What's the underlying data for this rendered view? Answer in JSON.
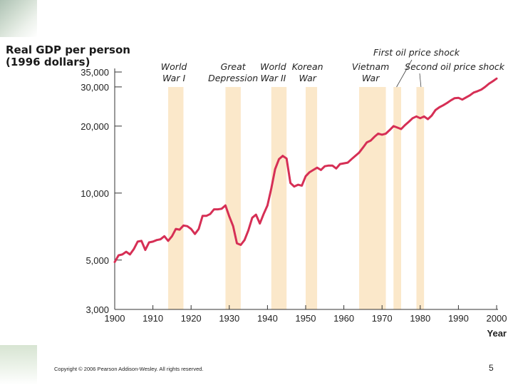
{
  "chart_data": {
    "type": "line",
    "ylabel": "Real GDP per person\n(1996 dollars)",
    "xlabel": "Year",
    "scale": "log",
    "xlim": [
      1900,
      2000
    ],
    "ylim": [
      3000,
      35000
    ],
    "x_ticks": [
      {
        "value": 1900,
        "label": "1900"
      },
      {
        "value": 1910,
        "label": "1910"
      },
      {
        "value": 1920,
        "label": "1920"
      },
      {
        "value": 1930,
        "label": "1930"
      },
      {
        "value": 1940,
        "label": "1940"
      },
      {
        "value": 1950,
        "label": "1950"
      },
      {
        "value": 1960,
        "label": "1960"
      },
      {
        "value": 1970,
        "label": "1970"
      },
      {
        "value": 1980,
        "label": "1980"
      },
      {
        "value": 1990,
        "label": "1990"
      },
      {
        "value": 2000,
        "label": "2000"
      }
    ],
    "y_ticks": [
      {
        "value": 3000,
        "label": "3,000"
      },
      {
        "value": 5000,
        "label": "5,000"
      },
      {
        "value": 10000,
        "label": "10,000"
      },
      {
        "value": 20000,
        "label": "20,000"
      },
      {
        "value": 30000,
        "label": "30,000"
      },
      {
        "value": 35000,
        "label": "35,000"
      }
    ],
    "bands": [
      {
        "name": "world-war-1",
        "start": 1914,
        "end": 1918,
        "label": [
          "World",
          "War I"
        ],
        "label_x": 1915.5
      },
      {
        "name": "great-depression",
        "start": 1929,
        "end": 1933,
        "label": [
          "Great",
          "Depression"
        ],
        "label_x": 1931
      },
      {
        "name": "world-war-2",
        "start": 1941,
        "end": 1945,
        "label": [
          "World",
          "War II"
        ],
        "label_x": 1941.5
      },
      {
        "name": "korean-war",
        "start": 1950,
        "end": 1953,
        "label": [
          "Korean",
          "War"
        ],
        "label_x": 1950.5
      },
      {
        "name": "vietnam-war",
        "start": 1964,
        "end": 1971,
        "label": [
          "Vietnam",
          "War"
        ],
        "label_x": 1967
      },
      {
        "name": "first-oil-price-shock",
        "start": 1973,
        "end": 1975,
        "label": [],
        "label_x": 1973.5
      },
      {
        "name": "second-oil-price-shock",
        "start": 1979,
        "end": 1981,
        "label": [],
        "label_x": 1980
      }
    ],
    "callouts": [
      {
        "name": "first-oil-price-shock-label",
        "text": "First oil price shock",
        "band": "first-oil-price-shock"
      },
      {
        "name": "second-oil-price-shock-label",
        "text": "Second oil price shock",
        "band": "second-oil-price-shock"
      }
    ],
    "series": [
      {
        "name": "Real GDP per person",
        "color": "#d62f55",
        "x": [
          1900,
          1901,
          1902,
          1903,
          1904,
          1905,
          1906,
          1907,
          1908,
          1909,
          1910,
          1911,
          1912,
          1913,
          1914,
          1915,
          1916,
          1917,
          1918,
          1919,
          1920,
          1921,
          1922,
          1923,
          1924,
          1925,
          1926,
          1927,
          1928,
          1929,
          1930,
          1931,
          1932,
          1933,
          1934,
          1935,
          1936,
          1937,
          1938,
          1939,
          1940,
          1941,
          1942,
          1943,
          1944,
          1945,
          1946,
          1947,
          1948,
          1949,
          1950,
          1951,
          1952,
          1953,
          1954,
          1955,
          1956,
          1957,
          1958,
          1959,
          1960,
          1961,
          1962,
          1963,
          1964,
          1965,
          1966,
          1967,
          1968,
          1969,
          1970,
          1971,
          1972,
          1973,
          1974,
          1975,
          1976,
          1977,
          1978,
          1979,
          1980,
          1981,
          1982,
          1983,
          1984,
          1985,
          1986,
          1987,
          1988,
          1989,
          1990,
          1991,
          1992,
          1993,
          1994,
          1995,
          1996,
          1997,
          1998,
          1999,
          2000
        ],
        "values": [
          4900,
          5250,
          5300,
          5450,
          5300,
          5600,
          6050,
          6100,
          5550,
          6000,
          6050,
          6150,
          6200,
          6400,
          6100,
          6400,
          6900,
          6850,
          7150,
          7100,
          6900,
          6550,
          6900,
          7900,
          7900,
          8050,
          8450,
          8450,
          8500,
          8800,
          7850,
          7100,
          5950,
          5850,
          6150,
          6800,
          7750,
          8000,
          7300,
          8050,
          8800,
          10500,
          12800,
          14200,
          14700,
          14300,
          11100,
          10700,
          10900,
          10800,
          11900,
          12400,
          12700,
          13000,
          12700,
          13200,
          13300,
          13300,
          12900,
          13500,
          13600,
          13700,
          14200,
          14700,
          15200,
          16000,
          16900,
          17200,
          17900,
          18500,
          18300,
          18500,
          19200,
          20000,
          19700,
          19400,
          20200,
          20900,
          21700,
          22100,
          21700,
          22100,
          21500,
          22300,
          23600,
          24300,
          24800,
          25400,
          26100,
          26700,
          26800,
          26300,
          26900,
          27500,
          28300,
          28700,
          29200,
          30000,
          31000,
          31800,
          32700
        ]
      }
    ]
  },
  "footer": {
    "copyright": "Copyright © 2006 Pearson Addison-Wesley. All rights reserved.",
    "page_number": "5"
  }
}
